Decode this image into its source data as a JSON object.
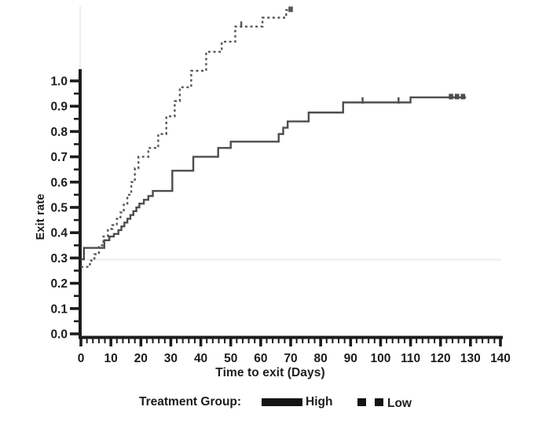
{
  "figure": {
    "background": "#ffffff",
    "axis_color": "#1c1c1c",
    "text_color": "#1c1c1c",
    "artifact_color": "rgba(0,0,0,0.06)"
  },
  "chart_data": {
    "type": "line",
    "subtype": "kaplan-meier-step",
    "title": "",
    "xlabel": "Time to exit (Days)",
    "ylabel": "Exit rate",
    "xlim": [
      0,
      140
    ],
    "ylim": [
      0.0,
      1.0
    ],
    "grid": false,
    "x_tick_labels": [
      "0",
      "10",
      "20",
      "30",
      "40",
      "50",
      "60",
      "70",
      "80",
      "90",
      "100",
      "110",
      "120",
      "130",
      "140"
    ],
    "x_tick_values": [
      0,
      10,
      20,
      30,
      40,
      50,
      60,
      70,
      80,
      90,
      100,
      110,
      120,
      130,
      140
    ],
    "x_minor_step": 2,
    "y_tick_labels": [
      "0.0",
      "0.1",
      "0.2",
      "0.3",
      "0.4",
      "0.5",
      "0.6",
      "0.7",
      "0.8",
      "0.9",
      "1.0"
    ],
    "y_tick_values": [
      0.0,
      0.1,
      0.2,
      0.3,
      0.4,
      0.5,
      0.6,
      0.7,
      0.8,
      0.9,
      1.0
    ],
    "y_minor_step": 0.05,
    "legend": {
      "label": "Treatment Group:",
      "position": "bottom",
      "entries": [
        {
          "name": "High",
          "style": "solid"
        },
        {
          "name": "Low",
          "style": "dashed"
        }
      ]
    },
    "note": "Scanned figure: the Low (dashed) curve is drawn extending above the 1.0 axis maximum; values below reflect plotted positions.",
    "series": [
      {
        "name": "High",
        "style": "solid",
        "color": "#4d4d4d",
        "steps": [
          [
            0,
            0.295
          ],
          [
            1,
            0.34
          ],
          [
            7.8,
            0.37
          ],
          [
            9.5,
            0.385
          ],
          [
            11,
            0.395
          ],
          [
            12.5,
            0.41
          ],
          [
            13.5,
            0.425
          ],
          [
            14.5,
            0.44
          ],
          [
            15.5,
            0.455
          ],
          [
            16.5,
            0.47
          ],
          [
            17.5,
            0.485
          ],
          [
            18.5,
            0.5
          ],
          [
            19.5,
            0.515
          ],
          [
            21,
            0.53
          ],
          [
            22.5,
            0.545
          ],
          [
            24,
            0.565
          ],
          [
            30.5,
            0.645
          ],
          [
            37.5,
            0.7
          ],
          [
            45.8,
            0.735
          ],
          [
            50,
            0.76
          ],
          [
            66,
            0.79
          ],
          [
            67.5,
            0.815
          ],
          [
            69,
            0.84
          ],
          [
            76,
            0.875
          ],
          [
            87.5,
            0.915
          ],
          [
            110,
            0.935
          ]
        ],
        "end_day": 128.5,
        "censor_days": [
          94,
          106
        ],
        "end_mark_days": [
          123.5,
          125.5,
          127.5
        ]
      },
      {
        "name": "Low",
        "style": "dashed",
        "color": "#575757",
        "steps": [
          [
            0,
            0.265
          ],
          [
            3,
            0.29
          ],
          [
            4.5,
            0.315
          ],
          [
            6,
            0.35
          ],
          [
            7.5,
            0.385
          ],
          [
            9,
            0.415
          ],
          [
            10.5,
            0.43
          ],
          [
            12,
            0.455
          ],
          [
            13.2,
            0.48
          ],
          [
            14.3,
            0.515
          ],
          [
            15.5,
            0.55
          ],
          [
            16.8,
            0.6
          ],
          [
            18,
            0.655
          ],
          [
            19.2,
            0.7
          ],
          [
            22.5,
            0.735
          ],
          [
            25.8,
            0.79
          ],
          [
            28.5,
            0.86
          ],
          [
            31.3,
            0.92
          ],
          [
            33,
            0.975
          ],
          [
            36.8,
            1.04
          ],
          [
            41.8,
            1.115
          ],
          [
            47,
            1.155
          ],
          [
            51.5,
            1.215
          ],
          [
            60.6,
            1.25
          ],
          [
            68.5,
            1.28
          ]
        ],
        "end_day": 70.5,
        "censor_days": [
          53.5
        ],
        "end_mark_days": [
          70
        ]
      }
    ]
  }
}
